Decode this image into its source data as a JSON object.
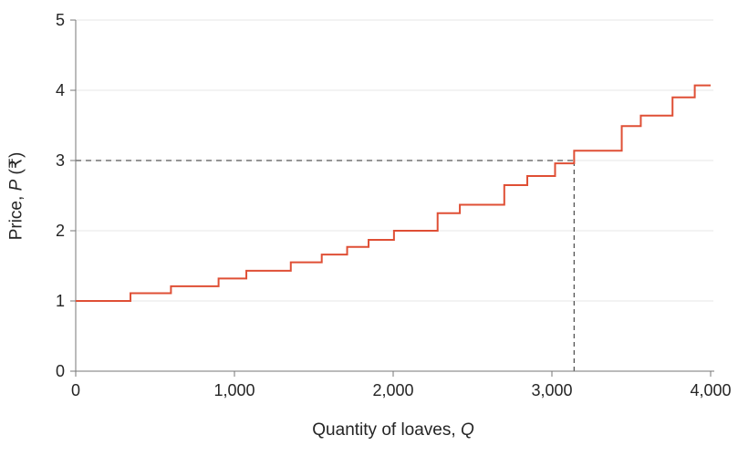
{
  "chart_data": {
    "type": "line",
    "subtype": "step-after",
    "xlabel_text": "Quantity of loaves, ",
    "xlabel_var": "Q",
    "ylabel_text": "Price, ",
    "ylabel_var": "P",
    "ylabel_suffix": " (₹)",
    "xlim": [
      0,
      4000
    ],
    "ylim": [
      0,
      5
    ],
    "x_ticks": [
      0,
      1000,
      2000,
      3000,
      4000
    ],
    "x_tick_labels": [
      "0",
      "1,000",
      "2,000",
      "3,000",
      "4,000"
    ],
    "y_ticks": [
      0,
      1,
      2,
      3,
      4,
      5
    ],
    "y_tick_labels": [
      "0",
      "1",
      "2",
      "3",
      "4",
      "5"
    ],
    "grid": "horizontal-on",
    "gridline_values": [
      1,
      2,
      3,
      4,
      5
    ],
    "legend": "none",
    "series": [
      {
        "name": "market-supply-step-curve",
        "color": "#df4f35",
        "q_end": 4000,
        "points": [
          {
            "q": 0,
            "p": 1.0
          },
          {
            "q": 345,
            "p": 1.11
          },
          {
            "q": 600,
            "p": 1.21
          },
          {
            "q": 900,
            "p": 1.32
          },
          {
            "q": 1075,
            "p": 1.43
          },
          {
            "q": 1355,
            "p": 1.55
          },
          {
            "q": 1550,
            "p": 1.66
          },
          {
            "q": 1710,
            "p": 1.77
          },
          {
            "q": 1845,
            "p": 1.87
          },
          {
            "q": 2005,
            "p": 2.0
          },
          {
            "q": 2280,
            "p": 2.25
          },
          {
            "q": 2420,
            "p": 2.37
          },
          {
            "q": 2700,
            "p": 2.65
          },
          {
            "q": 2845,
            "p": 2.78
          },
          {
            "q": 3020,
            "p": 2.96
          },
          {
            "q": 3140,
            "p": 3.14
          },
          {
            "q": 3440,
            "p": 3.49
          },
          {
            "q": 3560,
            "p": 3.64
          },
          {
            "q": 3760,
            "p": 3.9
          },
          {
            "q": 3900,
            "p": 4.07
          }
        ]
      }
    ],
    "annotations": {
      "dashed_horizontal": {
        "p": 3,
        "q_from": 0,
        "q_to": 3140
      },
      "dashed_vertical": {
        "q": 3140,
        "p_from": 0,
        "p_to": 3
      },
      "intersection": {
        "q": 3140,
        "p": 3
      }
    },
    "colors": {
      "line": "#df4f35",
      "dashed": "#555555",
      "axis": "#777777",
      "grid": "#e7e7e7",
      "tick_text": "#252525"
    }
  }
}
